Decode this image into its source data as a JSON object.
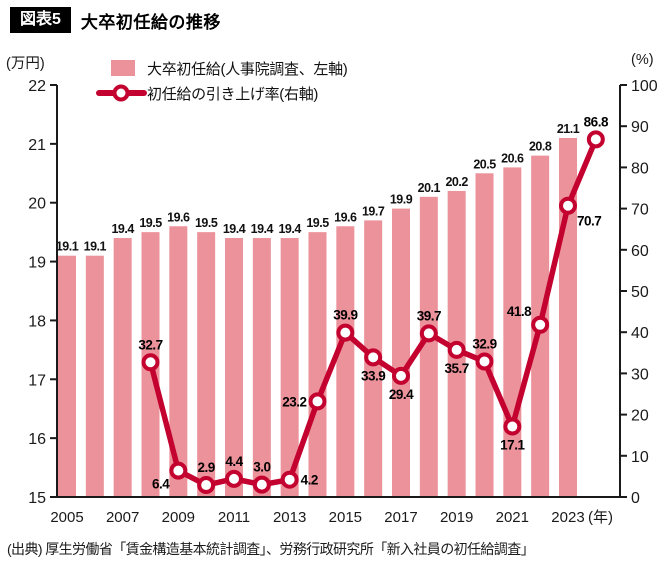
{
  "header": {
    "badge": "図表5",
    "title": "大卒初任給の推移"
  },
  "source": "(出典) 厚生労働省「賃金構造基本統計調査」、労務行政研究所「新入社員の初任給調査」",
  "chart_data": {
    "type": "bar+line",
    "title": "大卒初任給の推移",
    "bar_series": {
      "name": "大卒初任給(人事院調査、左軸)",
      "axis": "left",
      "years": [
        2005,
        2006,
        2007,
        2008,
        2009,
        2010,
        2011,
        2012,
        2013,
        2014,
        2015,
        2016,
        2017,
        2018,
        2019,
        2020,
        2021,
        2022,
        2023
      ],
      "values": [
        19.1,
        19.1,
        19.4,
        19.5,
        19.6,
        19.5,
        19.4,
        19.4,
        19.4,
        19.5,
        19.6,
        19.7,
        19.9,
        20.1,
        20.2,
        20.5,
        20.6,
        20.8,
        21.1
      ]
    },
    "line_series": {
      "name": "初任給の引き上げ率(右軸)",
      "axis": "right",
      "years": [
        2008,
        2009,
        2010,
        2011,
        2012,
        2013,
        2014,
        2015,
        2016,
        2017,
        2018,
        2019,
        2020,
        2021,
        2022,
        2023,
        2024
      ],
      "values": [
        32.7,
        6.4,
        2.9,
        4.4,
        3.0,
        4.2,
        23.2,
        39.9,
        33.9,
        29.4,
        39.7,
        35.7,
        32.9,
        17.1,
        41.8,
        70.7,
        86.8
      ],
      "label_pos": [
        "above",
        "below-left",
        "above",
        "above",
        "above",
        "right",
        "left",
        "above",
        "below",
        "below",
        "above",
        "below",
        "above",
        "below",
        "above-left",
        "below-right",
        "above"
      ]
    },
    "left_axis": {
      "unit": "(万円)",
      "min": 15,
      "max": 22,
      "ticks": [
        15,
        16,
        17,
        18,
        19,
        20,
        21,
        22
      ]
    },
    "right_axis": {
      "unit": "(%)",
      "min": 0,
      "max": 100,
      "ticks": [
        0,
        10,
        20,
        30,
        40,
        50,
        60,
        70,
        80,
        90,
        100
      ]
    },
    "x_axis": {
      "tick_years": [
        2005,
        2007,
        2009,
        2011,
        2013,
        2015,
        2017,
        2019,
        2021,
        2023
      ],
      "suffix": "(年)"
    },
    "colors": {
      "bar": "#ec929b",
      "line": "#c30230",
      "axis": "#1a1a1a"
    }
  }
}
